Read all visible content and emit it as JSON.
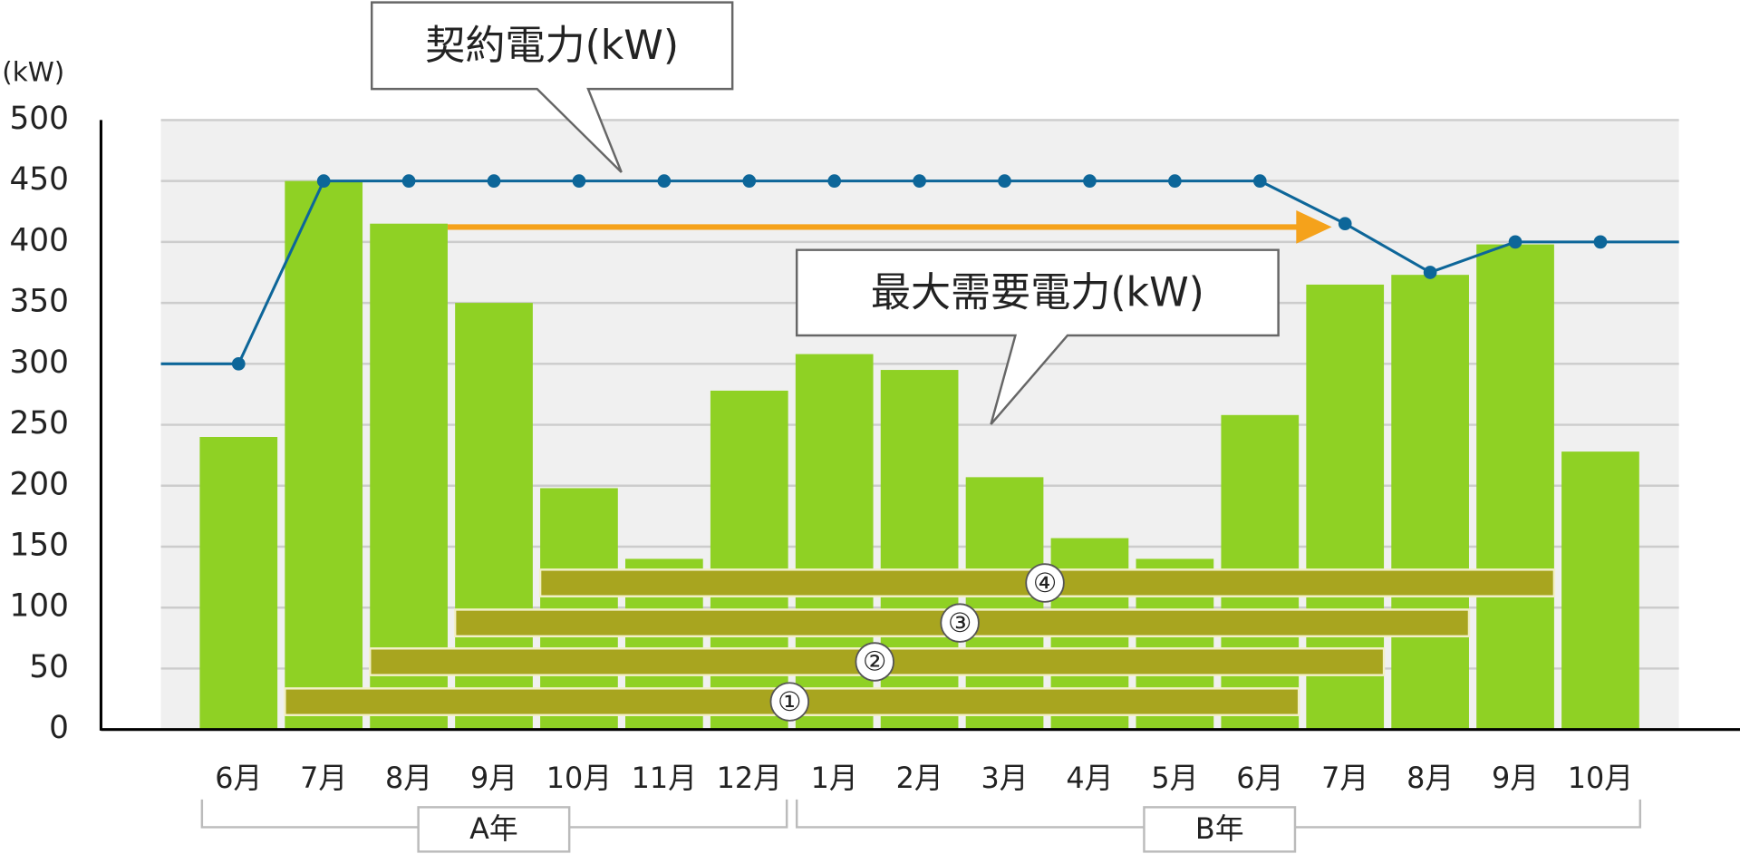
{
  "chart_data": {
    "type": "bar",
    "y_label": "(kW)",
    "categories": [
      "6月",
      "7月",
      "8月",
      "9月",
      "10月",
      "11月",
      "12月",
      "1月",
      "2月",
      "3月",
      "4月",
      "5月",
      "6月",
      "7月",
      "8月",
      "9月",
      "10月"
    ],
    "groups": [
      "A年",
      "B年"
    ],
    "series": [
      {
        "name": "最大需要電力(kW)",
        "type": "bar",
        "color": "#8fd124",
        "values": [
          240,
          450,
          415,
          350,
          198,
          140,
          278,
          308,
          295,
          207,
          157,
          140,
          258,
          365,
          373,
          398,
          228
        ]
      },
      {
        "name": "契約電力(kW)",
        "type": "line",
        "color": "#0d6699",
        "values": [
          300,
          450,
          450,
          450,
          450,
          450,
          450,
          450,
          450,
          450,
          450,
          450,
          450,
          415,
          375,
          400,
          400
        ]
      }
    ],
    "annotations": [
      "①",
      "②",
      "③",
      "④"
    ],
    "ylim": [
      0,
      500
    ],
    "yticks": [
      0,
      50,
      100,
      150,
      200,
      250,
      300,
      350,
      400,
      450,
      500
    ],
    "grid": true
  }
}
